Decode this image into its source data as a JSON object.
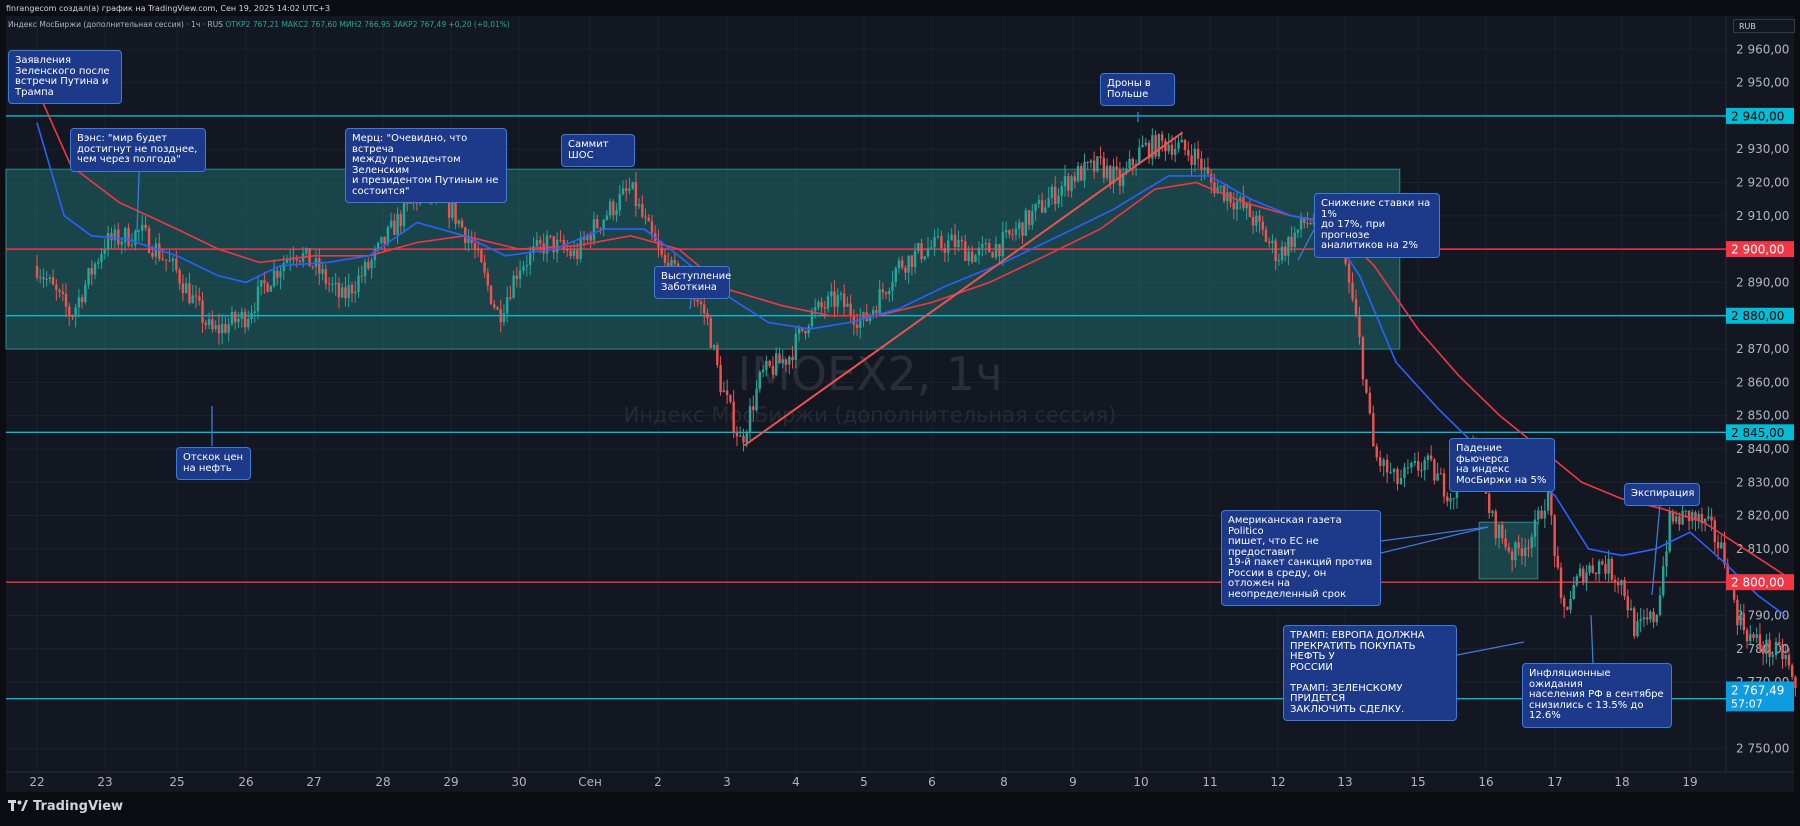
{
  "header": {
    "attribution": "finrangecom создал(а) график на TradingView.com, Сен 19, 2025 14:02 UTC+3",
    "legend_name": "Индекс МосБиржи (дополнительная сессия) · 1ч · RUS",
    "ohlc": "ОТКР2 767,21  МАКС2 767,60  МИН2 766,95  ЗАКР2 767,49  +0,20 (+0,01%)",
    "currency": "RUB"
  },
  "watermark": {
    "symbol": "IMOEX2, 1ч",
    "name": "Индекс МосБиржи (дополнительная сессия)"
  },
  "brand": "TradingView",
  "colors": {
    "bg": "#131722",
    "grid": "#1e222d",
    "up": "#26a69a",
    "down": "#ef5350",
    "ma_fast": "#2962ff",
    "ma_slow": "#f23645",
    "level_cyan": "#00bcd4",
    "level_red": "#f23645",
    "zone": "#1f6b6b"
  },
  "chart_data": {
    "type": "candlestick",
    "ylim": [
      2743,
      2970
    ],
    "yticks": [
      {
        "v": 2960,
        "label": "2 960,00"
      },
      {
        "v": 2950,
        "label": "2 950,00"
      },
      {
        "v": 2930,
        "label": "2 930,00"
      },
      {
        "v": 2920,
        "label": "2 920,00"
      },
      {
        "v": 2910,
        "label": "2 910,00"
      },
      {
        "v": 2890,
        "label": "2 890,00"
      },
      {
        "v": 2870,
        "label": "2 870,00"
      },
      {
        "v": 2860,
        "label": "2 860,00"
      },
      {
        "v": 2850,
        "label": "2 850,00"
      },
      {
        "v": 2840,
        "label": "2 840,00"
      },
      {
        "v": 2830,
        "label": "2 830,00"
      },
      {
        "v": 2820,
        "label": "2 820,00"
      },
      {
        "v": 2810,
        "label": "2 810,00"
      },
      {
        "v": 2790,
        "label": "2 790,00"
      },
      {
        "v": 2780,
        "label": "2 780,00"
      },
      {
        "v": 2770,
        "label": "2 770,00"
      },
      {
        "v": 2750,
        "label": "2 750,00"
      }
    ],
    "xticks": [
      "22",
      "23",
      "25",
      "26",
      "27",
      "28",
      "29",
      "30",
      "Сен",
      "2",
      "3",
      "4",
      "5",
      "6",
      "8",
      "9",
      "10",
      "11",
      "12",
      "13",
      "15",
      "16",
      "17",
      "18",
      "19"
    ],
    "levels": [
      {
        "v": 2940,
        "label": "2 940,00",
        "kind": "cyan"
      },
      {
        "v": 2900,
        "label": "2 900,00",
        "kind": "red"
      },
      {
        "v": 2880,
        "label": "2 880,00",
        "kind": "cyan"
      },
      {
        "v": 2845,
        "label": "2 845,00",
        "kind": "cyan"
      },
      {
        "v": 2800,
        "label": "2 800,00",
        "kind": "red"
      },
      {
        "v": 2765,
        "label": "2 765,00",
        "kind": "cyan"
      }
    ],
    "last_price": {
      "v": 2767.49,
      "label": "2 767,49",
      "timer": "57:07"
    },
    "zones": [
      {
        "x0": 0,
        "x1": 19.75,
        "y0": 2870,
        "y1": 2924
      },
      {
        "x0": 20.9,
        "x1": 21.75,
        "y0": 2801,
        "y1": 2818
      }
    ],
    "trendlines": [
      {
        "x0": 10.25,
        "y0": 2841,
        "x1": 16.6,
        "y1": 2935
      }
    ],
    "anchors": [
      [
        0,
        2895
      ],
      [
        0.5,
        2880
      ],
      [
        1.0,
        2902
      ],
      [
        1.5,
        2905
      ],
      [
        2.0,
        2893
      ],
      [
        2.5,
        2875
      ],
      [
        3.0,
        2880
      ],
      [
        3.3,
        2890
      ],
      [
        3.7,
        2900
      ],
      [
        4.0,
        2895
      ],
      [
        4.4,
        2885
      ],
      [
        4.8,
        2895
      ],
      [
        5.2,
        2908
      ],
      [
        5.6,
        2918
      ],
      [
        6.0,
        2912
      ],
      [
        6.3,
        2902
      ],
      [
        6.7,
        2880
      ],
      [
        7.0,
        2895
      ],
      [
        7.4,
        2902
      ],
      [
        7.8,
        2898
      ],
      [
        8.0,
        2905
      ],
      [
        8.3,
        2912
      ],
      [
        8.6,
        2918
      ],
      [
        8.8,
        2908
      ],
      [
        9.1,
        2895
      ],
      [
        9.4,
        2890
      ],
      [
        9.7,
        2880
      ],
      [
        9.9,
        2860
      ],
      [
        10.2,
        2842
      ],
      [
        10.5,
        2862
      ],
      [
        10.9,
        2868
      ],
      [
        11.2,
        2880
      ],
      [
        11.6,
        2885
      ],
      [
        12.0,
        2878
      ],
      [
        12.5,
        2895
      ],
      [
        12.9,
        2900
      ],
      [
        13.3,
        2902
      ],
      [
        13.6,
        2898
      ],
      [
        14.0,
        2902
      ],
      [
        14.5,
        2912
      ],
      [
        15.0,
        2922
      ],
      [
        15.4,
        2925
      ],
      [
        15.7,
        2920
      ],
      [
        16.0,
        2930
      ],
      [
        16.4,
        2932
      ],
      [
        16.8,
        2928
      ],
      [
        17.0,
        2920
      ],
      [
        17.3,
        2916
      ],
      [
        17.6,
        2910
      ],
      [
        18.0,
        2898
      ],
      [
        18.4,
        2908
      ],
      [
        18.8,
        2910
      ],
      [
        19.0,
        2896
      ],
      [
        19.2,
        2872
      ],
      [
        19.4,
        2838
      ],
      [
        19.7,
        2830
      ],
      [
        20.1,
        2836
      ],
      [
        20.5,
        2826
      ],
      [
        20.8,
        2840
      ],
      [
        21.1,
        2818
      ],
      [
        21.4,
        2808
      ],
      [
        21.7,
        2815
      ],
      [
        21.9,
        2828
      ],
      [
        22.1,
        2790
      ],
      [
        22.4,
        2803
      ],
      [
        22.7,
        2806
      ],
      [
        23.0,
        2800
      ],
      [
        23.2,
        2785
      ],
      [
        23.5,
        2790
      ],
      [
        23.7,
        2818
      ],
      [
        24.0,
        2820
      ],
      [
        24.3,
        2816
      ],
      [
        24.5,
        2808
      ],
      [
        24.7,
        2790
      ],
      [
        24.9,
        2783
      ],
      [
        25.2,
        2779
      ],
      [
        25.4,
        2778
      ],
      [
        25.55,
        2767
      ]
    ],
    "ma_fast": [
      [
        0,
        2938
      ],
      [
        0.4,
        2910
      ],
      [
        0.8,
        2904
      ],
      [
        1.3,
        2903
      ],
      [
        2.0,
        2898
      ],
      [
        2.6,
        2892
      ],
      [
        3.0,
        2890
      ],
      [
        3.5,
        2895
      ],
      [
        4.2,
        2896
      ],
      [
        4.8,
        2898
      ],
      [
        5.5,
        2908
      ],
      [
        6.2,
        2904
      ],
      [
        6.8,
        2898
      ],
      [
        7.5,
        2900
      ],
      [
        8.2,
        2906
      ],
      [
        8.8,
        2906
      ],
      [
        9.3,
        2898
      ],
      [
        10.0,
        2886
      ],
      [
        10.6,
        2878
      ],
      [
        11.2,
        2876
      ],
      [
        11.8,
        2878
      ],
      [
        12.5,
        2882
      ],
      [
        13.2,
        2889
      ],
      [
        14.0,
        2896
      ],
      [
        14.8,
        2904
      ],
      [
        15.6,
        2912
      ],
      [
        16.4,
        2922
      ],
      [
        17.0,
        2922
      ],
      [
        17.6,
        2915
      ],
      [
        18.2,
        2910
      ],
      [
        18.7,
        2908
      ],
      [
        19.2,
        2892
      ],
      [
        19.7,
        2866
      ],
      [
        20.3,
        2852
      ],
      [
        20.9,
        2840
      ],
      [
        21.5,
        2833
      ],
      [
        22.0,
        2826
      ],
      [
        22.5,
        2810
      ],
      [
        23.0,
        2808
      ],
      [
        23.5,
        2810
      ],
      [
        24.0,
        2815
      ],
      [
        24.5,
        2806
      ],
      [
        25.0,
        2796
      ],
      [
        25.4,
        2790
      ]
    ],
    "ma_slow": [
      [
        0,
        2948
      ],
      [
        0.5,
        2925
      ],
      [
        1.2,
        2914
      ],
      [
        2.0,
        2906
      ],
      [
        2.6,
        2900
      ],
      [
        3.2,
        2896
      ],
      [
        4.0,
        2898
      ],
      [
        4.8,
        2898
      ],
      [
        5.5,
        2902
      ],
      [
        6.2,
        2904
      ],
      [
        7.0,
        2900
      ],
      [
        7.8,
        2901
      ],
      [
        8.6,
        2904
      ],
      [
        9.3,
        2900
      ],
      [
        10.0,
        2888
      ],
      [
        10.8,
        2883
      ],
      [
        11.5,
        2880
      ],
      [
        12.2,
        2880
      ],
      [
        13.0,
        2884
      ],
      [
        13.8,
        2890
      ],
      [
        14.6,
        2898
      ],
      [
        15.4,
        2906
      ],
      [
        16.2,
        2918
      ],
      [
        16.8,
        2920
      ],
      [
        17.5,
        2914
      ],
      [
        18.2,
        2910
      ],
      [
        18.8,
        2908
      ],
      [
        19.4,
        2895
      ],
      [
        20.0,
        2876
      ],
      [
        20.6,
        2862
      ],
      [
        21.2,
        2850
      ],
      [
        21.8,
        2840
      ],
      [
        22.4,
        2830
      ],
      [
        23.0,
        2825
      ],
      [
        23.6,
        2822
      ],
      [
        24.2,
        2818
      ],
      [
        24.8,
        2810
      ],
      [
        25.4,
        2802
      ]
    ]
  },
  "notes": [
    {
      "id": "n1",
      "text": "Заявления\nЗеленского после\nвстречи Путина и\nТрампа"
    },
    {
      "id": "n2",
      "text": "Вэнс: \"мир будет\nдостигнут не позднее,\nчем через полгода\""
    },
    {
      "id": "n3",
      "text": "Мерц: \"Очевидно, что встреча\nмежду президентом Зеленским\nи президентом Путиным не\nсостоится\""
    },
    {
      "id": "n4",
      "text": "Саммит ШОС"
    },
    {
      "id": "n5",
      "text": "Выступление\nЗаботкина"
    },
    {
      "id": "n6",
      "text": "Отскок цен\nна нефть"
    },
    {
      "id": "n7",
      "text": "Дроны в\nПольше"
    },
    {
      "id": "n8",
      "text": "Снижение ставки на 1%\nдо 17%, при прогнозе\nаналитиков на 2%"
    },
    {
      "id": "n9",
      "text": "Падение фьючерса\nна индекс\nМосБиржи на 5%"
    },
    {
      "id": "n10",
      "text": "Американская газета Politico\nпишет, что ЕС не предоставит\n19-й пакет санкций против\nРоссии в среду, он отложен на\nнеопределенный срок"
    },
    {
      "id": "n11",
      "text": "Экспирация"
    },
    {
      "id": "n12",
      "text": "ТРАМП: ЕВРОПА ДОЛЖНА\nПРЕКРАТИТЬ ПОКУПАТЬ НЕФТЬ У\nРОССИИ\n\nТРАМП: ЗЕЛЕНСКОМУ ПРИДЕТСЯ\nЗАКЛЮЧИТЬ СДЕЛКУ."
    },
    {
      "id": "n13",
      "text": "Инфляционные ожидания\nнаселения РФ в сентябре\nснизились с 13.5% до 12.6%"
    }
  ]
}
